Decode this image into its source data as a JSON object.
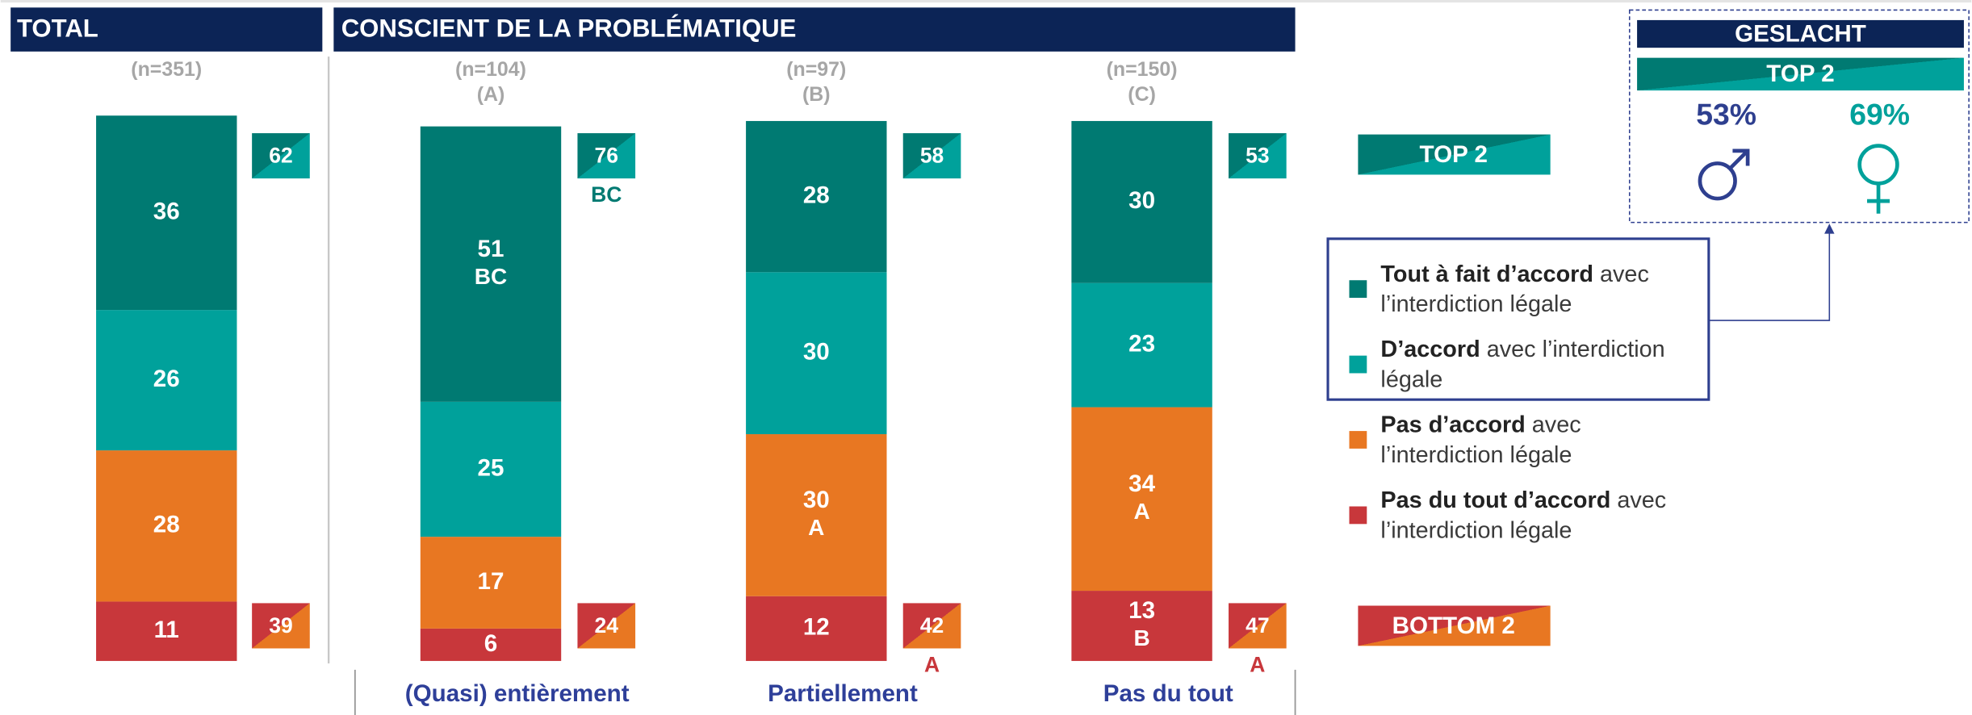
{
  "chart_data": {
    "type": "bar",
    "stacked": true,
    "section_titles": [
      "TOTAL",
      "CONSCIENT DE LA PROBLÉMATIQUE"
    ],
    "categories": [
      null,
      "(Quasi) entièrement",
      "Partiellement",
      "Pas du tout"
    ],
    "sample_sizes": [
      "(n=351)",
      "(n=104)",
      "(n=97)",
      "(n=150)"
    ],
    "group_letters": [
      null,
      "(A)",
      "(B)",
      "(C)"
    ],
    "ylim": [
      0,
      101
    ],
    "series": [
      {
        "name": "Tout à fait d’accord",
        "name_suffix": "avec l’interdiction légale",
        "color": "#007a72",
        "values": [
          36,
          51,
          28,
          30
        ],
        "sig_labels": [
          null,
          "BC",
          null,
          null
        ]
      },
      {
        "name": "D’accord",
        "name_suffix": "avec l’interdiction légale",
        "color": "#00a19b",
        "values": [
          26,
          25,
          30,
          23
        ],
        "sig_labels": [
          null,
          null,
          null,
          null
        ]
      },
      {
        "name": "Pas d’accord",
        "name_suffix": "avec l’interdiction légale",
        "color": "#e87722",
        "values": [
          28,
          17,
          30,
          34
        ],
        "sig_labels": [
          null,
          null,
          "A",
          "A"
        ]
      },
      {
        "name": "Pas du tout d’accord",
        "name_suffix": "avec l’interdiction légale",
        "color": "#c8373b",
        "values": [
          11,
          6,
          12,
          13
        ],
        "sig_labels": [
          null,
          null,
          null,
          "B"
        ]
      }
    ],
    "top2": {
      "label": "TOP 2",
      "values": [
        62,
        76,
        58,
        53
      ],
      "sig_labels": [
        null,
        "BC",
        null,
        null
      ]
    },
    "bottom2": {
      "label": "BOTTOM 2",
      "values": [
        39,
        24,
        42,
        47
      ],
      "sig_labels": [
        null,
        null,
        "A",
        "A"
      ]
    },
    "gender": {
      "title": "GESLACHT",
      "subtitle": "TOP 2",
      "values": [
        53,
        69
      ],
      "value_labels": [
        "53%",
        "69%"
      ],
      "colors": [
        "#2e3f8f",
        "#00a19b"
      ]
    }
  }
}
